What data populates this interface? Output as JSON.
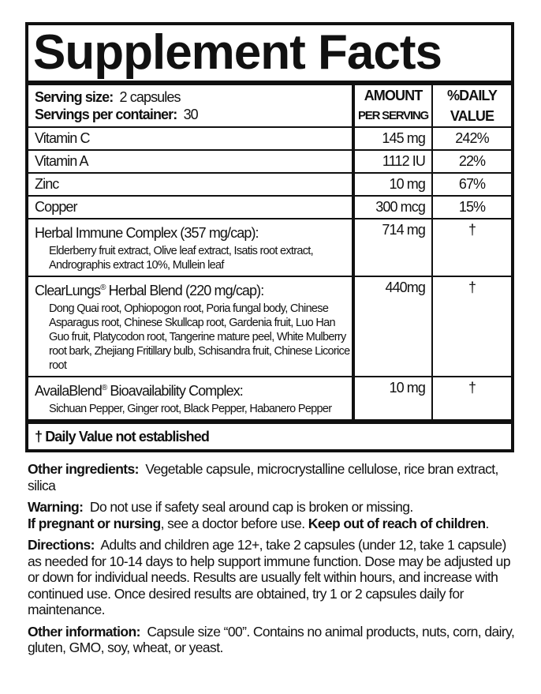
{
  "title": "Supplement Facts",
  "serving": {
    "size_label": "Serving size:",
    "size_value": "2 capsules",
    "per_container_label": "Servings per container:",
    "per_container_value": "30"
  },
  "columns": {
    "amount_1": "AMOUNT",
    "amount_2": "PER SERVING",
    "dv_1": "%DAILY",
    "dv_2": "VALUE"
  },
  "rows": [
    {
      "name": "Vitamin C",
      "amount": "145 mg",
      "dv": "242%"
    },
    {
      "name": "Vitamin A",
      "amount": "1112 IU",
      "dv": "22%"
    },
    {
      "name": "Zinc",
      "amount": "10 mg",
      "dv": "67%"
    },
    {
      "name": "Copper",
      "amount": "300 mcg",
      "dv": "15%"
    }
  ],
  "blends": [
    {
      "name": "Herbal Immune Complex",
      "reg": "",
      "detail": "(357 mg/cap):",
      "ingredients": "Elderberry fruit extract, Olive leaf extract, Isatis root extract, Andrographis extract 10%, Mullein leaf",
      "amount": "714 mg",
      "dv": "†"
    },
    {
      "name": "ClearLungs",
      "reg": "®",
      "detail": " Herbal Blend (220 mg/cap):",
      "ingredients": "Dong Quai root, Ophiopogon root, Poria fungal body, Chinese Asparagus root, Chinese Skullcap root, Gardenia fruit, Luo Han Guo fruit, Platycodon root, Tangerine mature peel, White Mulberry root bark, Zhejiang Fritillary bulb, Schisandra fruit, Chinese Licorice root",
      "amount": "440mg",
      "dv": "†"
    },
    {
      "name": "AvailaBlend",
      "reg": "®",
      "detail": " Bioavailability Complex:",
      "ingredients": "Sichuan Pepper, Ginger root, Black Pepper, Habanero Pepper",
      "amount": "10 mg",
      "dv": "†"
    }
  ],
  "footnote": "† Daily Value not established",
  "other_ingredients": {
    "label": "Other ingredients:",
    "text": "Vegetable capsule, microcrystalline cellulose, rice bran extract, silica"
  },
  "warning": {
    "label": "Warning:",
    "text": "Do not use if safety seal around cap is broken or missing.",
    "pregnant_label": "If pregnant or nursing",
    "pregnant_text": ", see a doctor before use.",
    "keep_out": "Keep out of reach of children",
    "end": "."
  },
  "directions": {
    "label": "Directions:",
    "text": "Adults and children age 12+, take 2 capsules (under 12, take 1 capsule) as needed for 10-14 days to help support immune function. Dose may be adjusted up or down for individual needs. Results are usually felt within hours, and increase with continued use. Once desired results are obtained, try 1 or 2 capsules daily for maintenance."
  },
  "other_information": {
    "label": "Other information:",
    "text": "Capsule size “00”. Contains no animal products, nuts, corn, dairy, gluten, GMO, soy, wheat, or yeast."
  }
}
